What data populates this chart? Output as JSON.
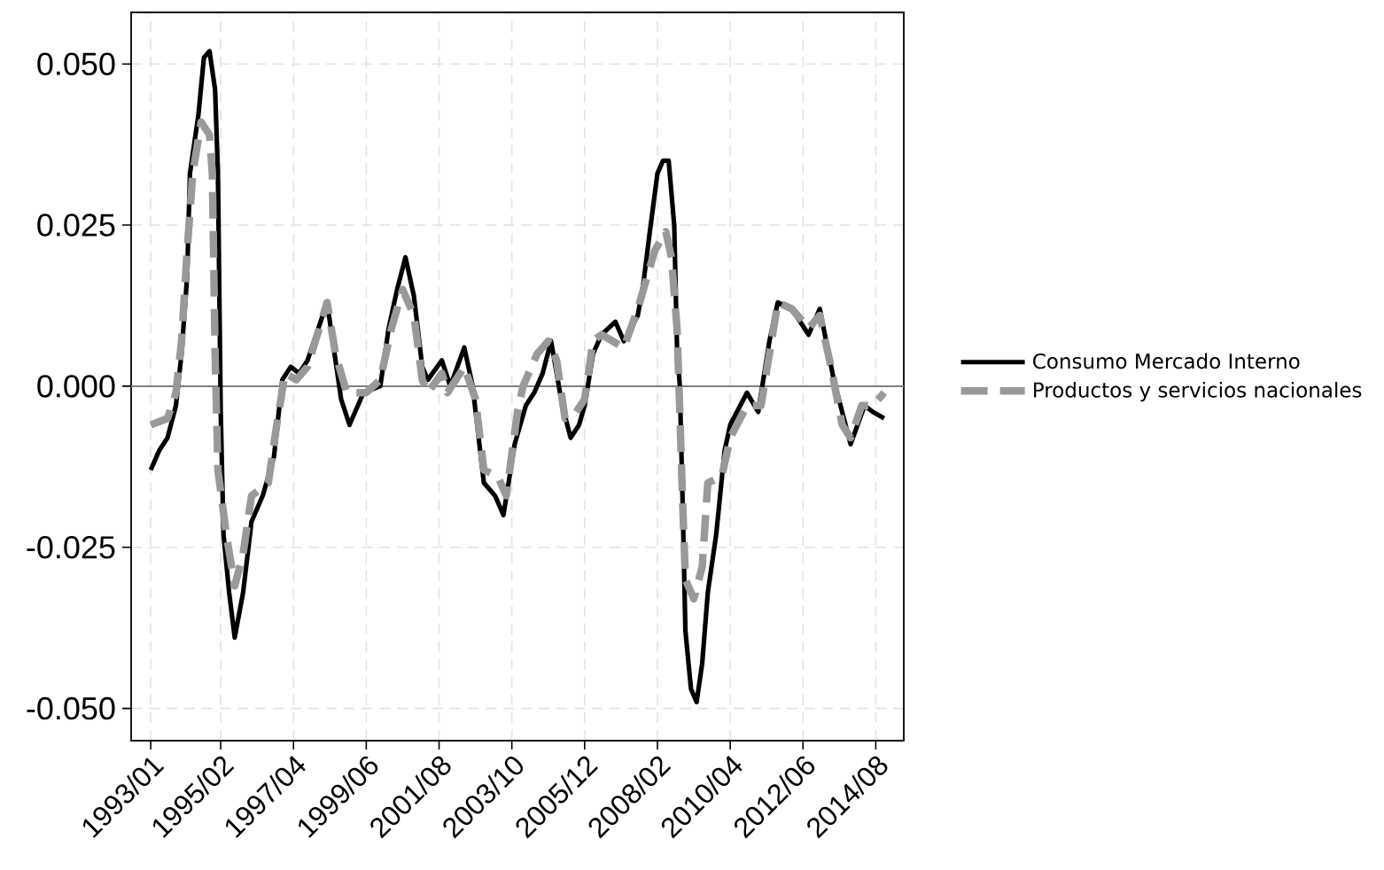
{
  "chart_data": {
    "type": "line",
    "xlim": [
      "1992-06",
      "2015-06"
    ],
    "ylim": [
      -0.055,
      0.058
    ],
    "xticks": [
      {
        "value": "1993-01",
        "label": "1993/01"
      },
      {
        "value": "1995-02",
        "label": "1995/02"
      },
      {
        "value": "1997-04",
        "label": "1997/04"
      },
      {
        "value": "1999-06",
        "label": "1999/06"
      },
      {
        "value": "2001-08",
        "label": "2001/08"
      },
      {
        "value": "2003-10",
        "label": "2003/10"
      },
      {
        "value": "2005-12",
        "label": "2005/12"
      },
      {
        "value": "2008-02",
        "label": "2008/02"
      },
      {
        "value": "2010-04",
        "label": "2010/04"
      },
      {
        "value": "2012-06",
        "label": "2012/06"
      },
      {
        "value": "2014-08",
        "label": "2014/08"
      }
    ],
    "yticks": [
      {
        "value": -0.05,
        "label": "-0.050"
      },
      {
        "value": -0.025,
        "label": "-0.025"
      },
      {
        "value": 0,
        "label": "0.000"
      },
      {
        "value": 0.025,
        "label": "0.025"
      },
      {
        "value": 0.05,
        "label": "0.050"
      }
    ],
    "grid": true,
    "legend": "right",
    "ref_lines": [
      {
        "axis": "y",
        "value": 0,
        "color": "#7f7f7f"
      }
    ],
    "series": [
      {
        "name": "Consumo Mercado Interno",
        "color": "#000000",
        "line_style": "solid",
        "x": [
          "1993-01",
          "1993-04",
          "1993-07",
          "1993-10",
          "1993-12",
          "1994-02",
          "1994-03",
          "1994-06",
          "1994-08",
          "1994-10",
          "1994-12",
          "1995-01",
          "1995-02",
          "1995-03",
          "1995-05",
          "1995-07",
          "1995-10",
          "1996-01",
          "1996-05",
          "1996-09",
          "1996-12",
          "1997-03",
          "1997-06",
          "1997-09",
          "1998-04",
          "1998-09",
          "1998-12",
          "1999-05",
          "1999-11",
          "2000-02",
          "2000-05",
          "2000-08",
          "2000-11",
          "2001-02",
          "2001-04",
          "2001-09",
          "2001-12",
          "2002-05",
          "2002-08",
          "2002-12",
          "2003-02",
          "2003-04",
          "2003-07",
          "2003-11",
          "2004-03",
          "2004-06",
          "2004-09",
          "2004-12",
          "2005-04",
          "2005-07",
          "2005-10",
          "2005-12",
          "2006-03",
          "2006-06",
          "2006-11",
          "2007-02",
          "2007-07",
          "2007-09",
          "2007-11",
          "2008-02",
          "2008-04",
          "2008-06",
          "2008-08",
          "2008-09",
          "2008-10",
          "2008-11",
          "2008-12",
          "2009-02",
          "2009-04",
          "2009-06",
          "2009-08",
          "2009-11",
          "2010-02",
          "2010-04",
          "2010-10",
          "2011-02",
          "2011-06",
          "2011-09",
          "2012-02",
          "2012-08",
          "2012-12",
          "2013-05",
          "2013-11",
          "2014-04",
          "2014-07",
          "2014-11"
        ],
        "values": [
          -0.013,
          -0.01,
          -0.008,
          -0.003,
          0.005,
          0.017,
          0.033,
          0.042,
          0.051,
          0.052,
          0.046,
          0.033,
          -0.004,
          -0.023,
          -0.032,
          -0.039,
          -0.032,
          -0.021,
          -0.017,
          -0.011,
          0.001,
          0.003,
          0.002,
          0.004,
          0.013,
          -0.002,
          -0.006,
          -0.001,
          0.0,
          0.009,
          0.015,
          0.02,
          0.014,
          0.003,
          0.001,
          0.004,
          0.0,
          0.006,
          0.0,
          -0.015,
          -0.016,
          -0.017,
          -0.02,
          -0.009,
          -0.003,
          -0.001,
          0.002,
          0.007,
          -0.003,
          -0.008,
          -0.006,
          -0.003,
          0.005,
          0.008,
          0.01,
          0.007,
          0.011,
          0.016,
          0.023,
          0.033,
          0.035,
          0.035,
          0.025,
          0.006,
          0.0,
          -0.018,
          -0.038,
          -0.047,
          -0.049,
          -0.043,
          -0.032,
          -0.023,
          -0.01,
          -0.006,
          -0.001,
          -0.004,
          0.007,
          0.013,
          0.012,
          0.008,
          0.012,
          0.001,
          -0.009,
          -0.003,
          -0.004,
          -0.005
        ]
      },
      {
        "name": "Productos y servicios nacionales",
        "color": "#999999",
        "line_style": "dashed",
        "x": [
          "1993-01",
          "1993-07",
          "1993-10",
          "1993-12",
          "1994-02",
          "1994-04",
          "1994-07",
          "1994-10",
          "1994-11",
          "1994-12",
          "1995-01",
          "1995-04",
          "1995-07",
          "1995-10",
          "1996-01",
          "1996-07",
          "1996-10",
          "1997-01",
          "1997-05",
          "1997-09",
          "1998-04",
          "1998-07",
          "1998-11",
          "1999-06",
          "1999-11",
          "2000-03",
          "2000-07",
          "2000-11",
          "2001-02",
          "2001-04",
          "2001-09",
          "2001-11",
          "2002-05",
          "2002-09",
          "2002-12",
          "2003-05",
          "2003-08",
          "2003-12",
          "2004-02",
          "2004-07",
          "2004-11",
          "2005-02",
          "2005-05",
          "2005-09",
          "2005-12",
          "2006-03",
          "2006-06",
          "2006-10",
          "2007-02",
          "2007-07",
          "2008-01",
          "2008-05",
          "2008-07",
          "2008-09",
          "2008-10",
          "2008-11",
          "2008-12",
          "2009-03",
          "2009-06",
          "2009-08",
          "2010-01",
          "2010-04",
          "2010-10",
          "2011-03",
          "2011-06",
          "2011-09",
          "2012-02",
          "2012-08",
          "2012-12",
          "2013-04",
          "2013-08",
          "2013-11",
          "2014-03",
          "2014-07",
          "2014-11"
        ],
        "values": [
          -0.006,
          -0.005,
          -0.001,
          0.007,
          0.021,
          0.033,
          0.041,
          0.039,
          0.033,
          0.005,
          -0.013,
          -0.023,
          -0.031,
          -0.026,
          -0.017,
          -0.015,
          -0.006,
          0.002,
          0.001,
          0.003,
          0.013,
          0.005,
          -0.001,
          -0.001,
          0.001,
          0.009,
          0.015,
          0.011,
          0.001,
          -0.001,
          0.002,
          -0.001,
          0.003,
          -0.002,
          -0.013,
          -0.014,
          -0.017,
          -0.004,
          0.0,
          0.005,
          0.007,
          0.004,
          -0.005,
          -0.004,
          -0.002,
          0.007,
          0.008,
          0.007,
          0.006,
          0.012,
          0.021,
          0.024,
          0.02,
          0.009,
          -0.004,
          -0.018,
          -0.03,
          -0.033,
          -0.028,
          -0.015,
          -0.014,
          -0.008,
          -0.003,
          -0.003,
          0.005,
          0.013,
          0.012,
          0.009,
          0.011,
          0.003,
          -0.006,
          -0.008,
          -0.003,
          -0.003,
          -0.001
        ]
      }
    ]
  }
}
